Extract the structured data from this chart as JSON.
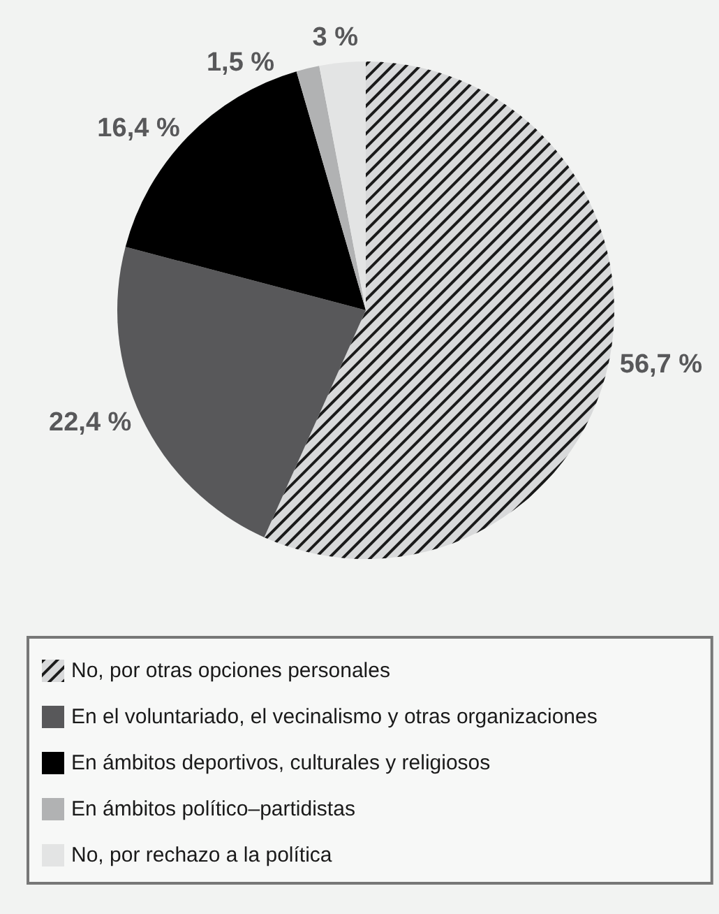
{
  "chart_data": {
    "type": "pie",
    "categories": [
      "No, por otras opciones personales",
      "En el voluntariado, el vecinalismo y otras organizaciones",
      "En ámbitos deportivos, culturales y religiosos",
      "En ámbitos político–partidistas",
      "No, por rechazo a la política"
    ],
    "values": [
      56.7,
      22.4,
      16.4,
      1.5,
      3
    ],
    "value_labels": [
      "56,7 %",
      "22,4 %",
      "16,4 %",
      "1,5 %",
      "3 %"
    ],
    "colors": [
      "#d8d9da",
      "#58585a",
      "#000000",
      "#b1b2b3",
      "#e3e4e4"
    ],
    "legend": "bottom"
  }
}
